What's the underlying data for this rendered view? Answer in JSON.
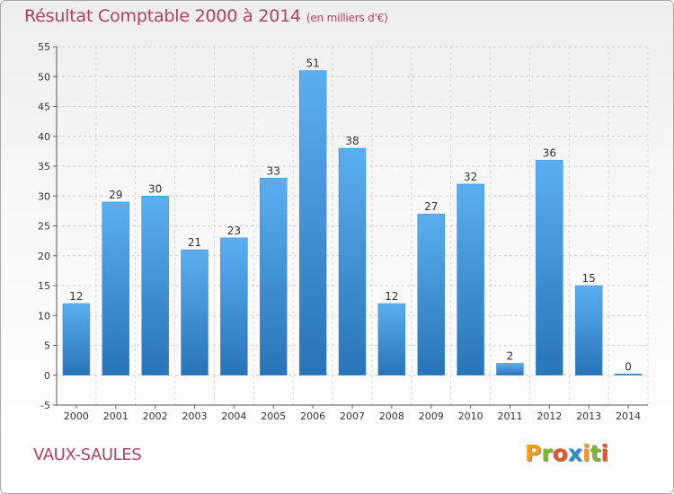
{
  "header": {
    "title": "Résultat Comptable 2000 à 2014",
    "unit": "(en milliers d'€)"
  },
  "footer": {
    "location": "VAUX-SAULES",
    "logo_letters": [
      "P",
      "r",
      "o",
      "x",
      "i",
      "t",
      "i"
    ],
    "logo_colors": [
      "#f39c1d",
      "#7ab92c",
      "#e2572b",
      "#2d8ec9",
      "#f39c1d",
      "#7ab92c",
      "#e2572b"
    ]
  },
  "chart_data": {
    "type": "bar",
    "title": "Résultat Comptable 2000 à 2014",
    "subtitle": "(en milliers d'€)",
    "xlabel": "",
    "ylabel": "",
    "categories": [
      "2000",
      "2001",
      "2002",
      "2003",
      "2004",
      "2005",
      "2006",
      "2007",
      "2008",
      "2009",
      "2010",
      "2011",
      "2012",
      "2013",
      "2014"
    ],
    "values": [
      12,
      29,
      30,
      21,
      23,
      33,
      51,
      38,
      12,
      27,
      32,
      2,
      36,
      15,
      0
    ],
    "ylim": [
      -5,
      55
    ],
    "yticks": [
      -5,
      0,
      5,
      10,
      15,
      20,
      25,
      30,
      35,
      40,
      45,
      50,
      55
    ],
    "grid": true,
    "bar_color": "#3a8fd8",
    "bar_color_light": "#5aaef0",
    "bar_color_dark": "#2a74b8",
    "legend": "none"
  }
}
